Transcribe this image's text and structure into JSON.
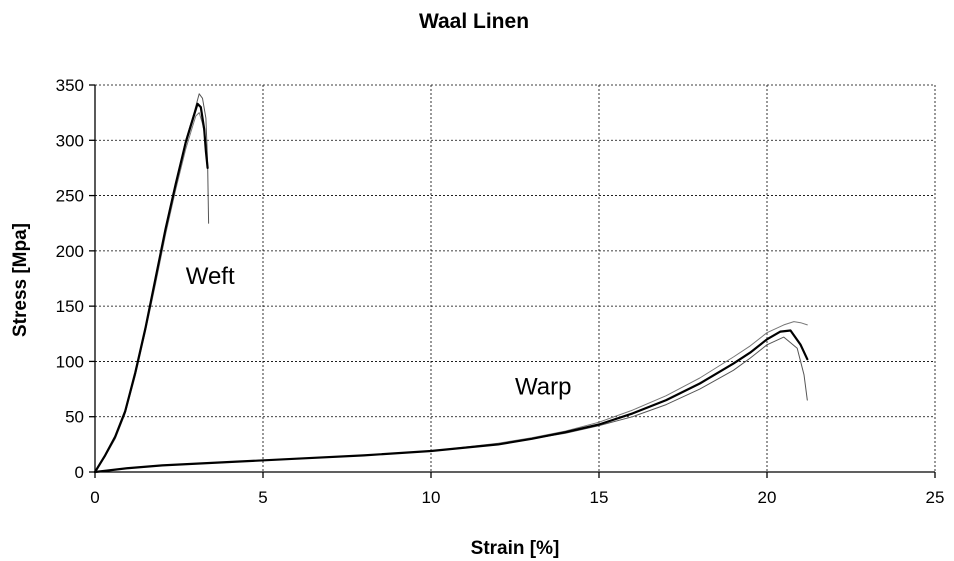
{
  "chart_data": {
    "type": "line",
    "title": "Waal Linen",
    "xlabel": "Strain [%]",
    "ylabel": "Stress [Mpa]",
    "xlim": [
      0,
      25
    ],
    "ylim": [
      0,
      350
    ],
    "xticks": [
      0,
      5,
      10,
      15,
      20,
      25
    ],
    "yticks": [
      0,
      50,
      100,
      150,
      200,
      250,
      300,
      350
    ],
    "grid": true,
    "annotations": [
      {
        "text": "Weft",
        "x": 2.7,
        "y": 170
      },
      {
        "text": "Warp",
        "x": 12.5,
        "y": 70
      }
    ],
    "series": [
      {
        "group": "Weft",
        "color": "#000000",
        "width": 2.2,
        "x": [
          0,
          0.3,
          0.6,
          0.9,
          1.2,
          1.5,
          1.8,
          2.1,
          2.4,
          2.7,
          2.9,
          3.05,
          3.15,
          3.25,
          3.3,
          3.35
        ],
        "y": [
          0,
          15,
          32,
          55,
          90,
          130,
          175,
          220,
          260,
          298,
          318,
          333,
          330,
          310,
          290,
          275
        ]
      },
      {
        "group": "Weft",
        "color": "#555555",
        "width": 1,
        "x": [
          0,
          0.3,
          0.6,
          0.9,
          1.2,
          1.5,
          1.8,
          2.1,
          2.4,
          2.7,
          2.95,
          3.1,
          3.2,
          3.3,
          3.35,
          3.38
        ],
        "y": [
          0,
          14,
          31,
          54,
          88,
          128,
          172,
          218,
          258,
          300,
          325,
          342,
          338,
          320,
          280,
          225
        ]
      },
      {
        "group": "Weft",
        "color": "#777777",
        "width": 1,
        "x": [
          0,
          0.3,
          0.6,
          0.9,
          1.2,
          1.5,
          1.8,
          2.1,
          2.4,
          2.7,
          2.9,
          3.0,
          3.1,
          3.2,
          3.3
        ],
        "y": [
          0,
          14,
          30,
          53,
          87,
          127,
          170,
          215,
          255,
          292,
          312,
          322,
          325,
          315,
          300
        ]
      },
      {
        "group": "Warp",
        "color": "#000000",
        "width": 2.2,
        "x": [
          0,
          1,
          2,
          4,
          6,
          8,
          10,
          12,
          13,
          14,
          15,
          16,
          17,
          18,
          19,
          19.5,
          20,
          20.4,
          20.7,
          21.0,
          21.2
        ],
        "y": [
          0,
          3.5,
          6,
          9,
          12,
          15,
          19,
          25,
          30,
          36,
          43,
          53,
          65,
          80,
          98,
          108,
          120,
          127,
          128,
          115,
          102
        ]
      },
      {
        "group": "Warp",
        "color": "#555555",
        "width": 1,
        "x": [
          0,
          1,
          2,
          4,
          6,
          8,
          10,
          12,
          13,
          14,
          15,
          16,
          17,
          18,
          19,
          19.5,
          20,
          20.5,
          20.9,
          21.1,
          21.2
        ],
        "y": [
          0,
          3.5,
          6,
          9,
          12,
          15,
          19,
          25,
          30,
          35,
          42,
          50,
          61,
          75,
          92,
          103,
          115,
          122,
          112,
          88,
          65
        ]
      },
      {
        "group": "Warp",
        "color": "#777777",
        "width": 1,
        "x": [
          0,
          1,
          2,
          4,
          6,
          8,
          10,
          12,
          13,
          14,
          15,
          16,
          17,
          18,
          19,
          19.5,
          20,
          20.5,
          20.8,
          21.0,
          21.2
        ],
        "y": [
          0,
          3.5,
          6,
          9,
          12,
          15,
          19,
          26,
          31,
          37,
          45,
          56,
          69,
          85,
          104,
          114,
          126,
          133,
          136,
          135,
          133
        ]
      }
    ]
  }
}
